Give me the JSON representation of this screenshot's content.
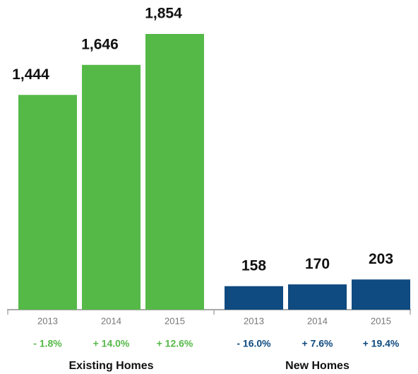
{
  "chart_data": [
    {
      "type": "bar",
      "title": "Existing Homes",
      "categories": [
        "2013",
        "2014",
        "2015"
      ],
      "values": [
        1444,
        1646,
        1854
      ],
      "value_labels": [
        "1,444",
        "1,646",
        "1,854"
      ],
      "annotations": [
        "- 1.8%",
        "+ 14.0%",
        "+ 12.6%"
      ],
      "color": "#55b948"
    },
    {
      "type": "bar",
      "title": "New Homes",
      "categories": [
        "2013",
        "2014",
        "2015"
      ],
      "values": [
        158,
        170,
        203
      ],
      "value_labels": [
        "158",
        "170",
        "203"
      ],
      "annotations": [
        "- 16.0%",
        "+ 7.6%",
        "+ 19.4%"
      ],
      "color": "#0f4a80"
    }
  ]
}
